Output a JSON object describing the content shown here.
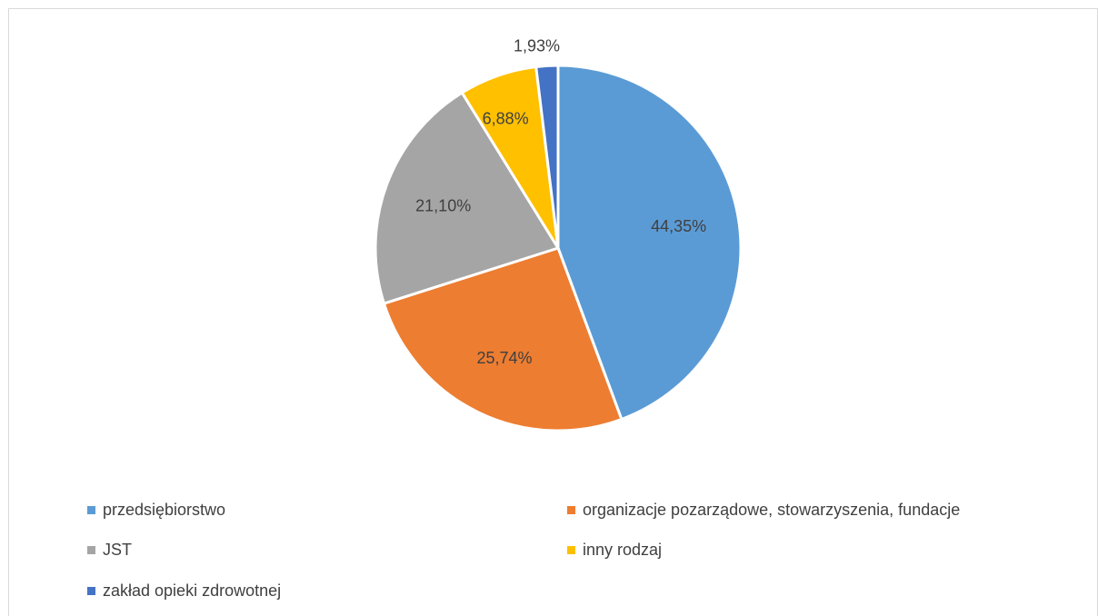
{
  "chart_data": {
    "type": "pie",
    "title": "",
    "start_angle_deg": 0,
    "direction": "clockwise",
    "legend_position": "bottom",
    "slices": [
      {
        "name": "przedsiębiorstwo",
        "value": 44.35,
        "label": "44,35%",
        "color": "#5B9BD5"
      },
      {
        "name": "organizacje pozarządowe, stowarzyszenia, fundacje",
        "value": 25.74,
        "label": "25,74%",
        "color": "#ED7D31"
      },
      {
        "name": "JST",
        "value": 21.1,
        "label": "21,10%",
        "color": "#A5A5A5"
      },
      {
        "name": "inny rodzaj",
        "value": 6.88,
        "label": "6,88%",
        "color": "#FFC000"
      },
      {
        "name": "zakład opieki zdrowotnej",
        "value": 1.93,
        "label": "1,93%",
        "color": "#4472C4"
      }
    ]
  }
}
